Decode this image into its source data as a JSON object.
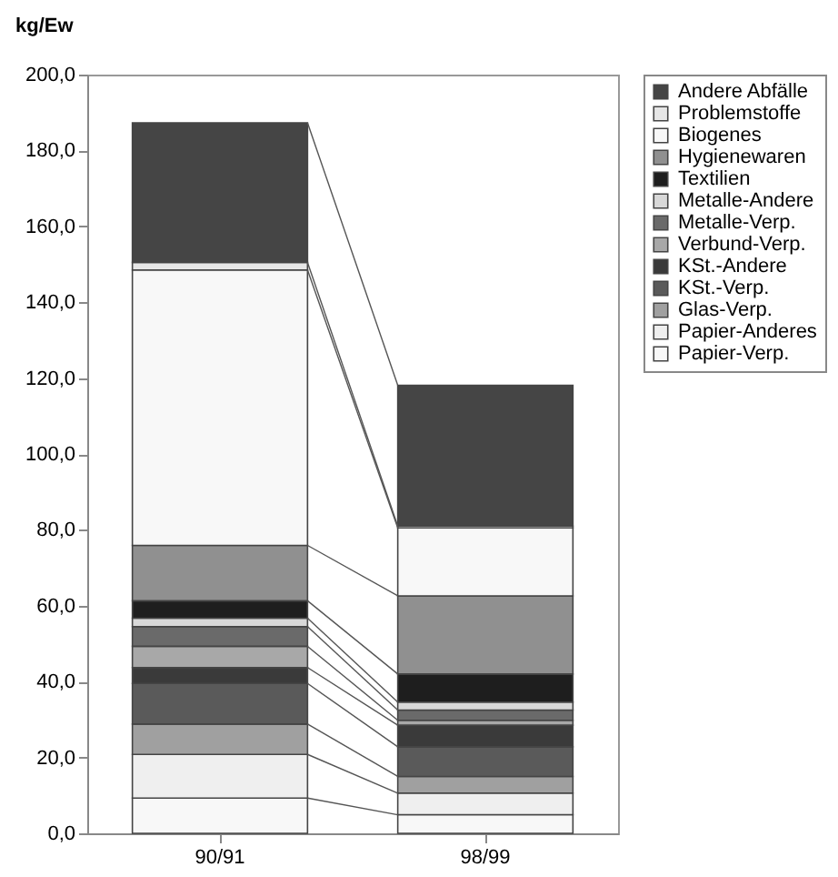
{
  "chart_data": {
    "type": "bar",
    "stacked": true,
    "ylabel": "kg/Ew",
    "categories": [
      "90/91",
      "98/99"
    ],
    "series": [
      {
        "name": "Papier-Verp.",
        "color": "#f8f8f8",
        "values": [
          9.3,
          4.9
        ]
      },
      {
        "name": "Papier-Anderes",
        "color": "#efefef",
        "values": [
          11.5,
          5.7
        ]
      },
      {
        "name": "Glas-Verp.",
        "color": "#a0a0a0",
        "values": [
          8.0,
          4.4
        ]
      },
      {
        "name": "KSt.-Verp.",
        "color": "#5a5a5a",
        "values": [
          10.7,
          7.8
        ]
      },
      {
        "name": "KSt.-Andere",
        "color": "#3a3a3a",
        "values": [
          4.2,
          5.7
        ]
      },
      {
        "name": "Verbund-Verp.",
        "color": "#a8a8a8",
        "values": [
          5.6,
          1.3
        ]
      },
      {
        "name": "Metalle-Verp.",
        "color": "#6a6a6a",
        "values": [
          5.2,
          2.7
        ]
      },
      {
        "name": "Metalle-Andere",
        "color": "#d8d8d8",
        "values": [
          2.2,
          2.1
        ]
      },
      {
        "name": "Textilien",
        "color": "#1e1e1e",
        "values": [
          4.6,
          7.4
        ]
      },
      {
        "name": "Hygienewaren",
        "color": "#909090",
        "values": [
          14.6,
          20.6
        ]
      },
      {
        "name": "Biogenes",
        "color": "#f8f8f8",
        "values": [
          72.6,
          17.9
        ]
      },
      {
        "name": "Problemstoffe",
        "color": "#e6e6e6",
        "values": [
          2.0,
          0.5
        ]
      },
      {
        "name": "Andere Abfälle",
        "color": "#454545",
        "values": [
          36.8,
          37.1
        ]
      }
    ],
    "ylim": [
      0,
      200
    ],
    "yticks": [
      {
        "value": 0,
        "label": "0,0"
      },
      {
        "value": 20,
        "label": "20,0"
      },
      {
        "value": 40,
        "label": "40,0"
      },
      {
        "value": 60,
        "label": "60,0"
      },
      {
        "value": 80,
        "label": "80,0"
      },
      {
        "value": 100,
        "label": "100,0"
      },
      {
        "value": 120,
        "label": "120,0"
      },
      {
        "value": 140,
        "label": "140,0"
      },
      {
        "value": 160,
        "label": "160,0"
      },
      {
        "value": 180,
        "label": "180,0"
      },
      {
        "value": 200,
        "label": "200,0"
      }
    ],
    "grid": false,
    "legend": "right"
  }
}
